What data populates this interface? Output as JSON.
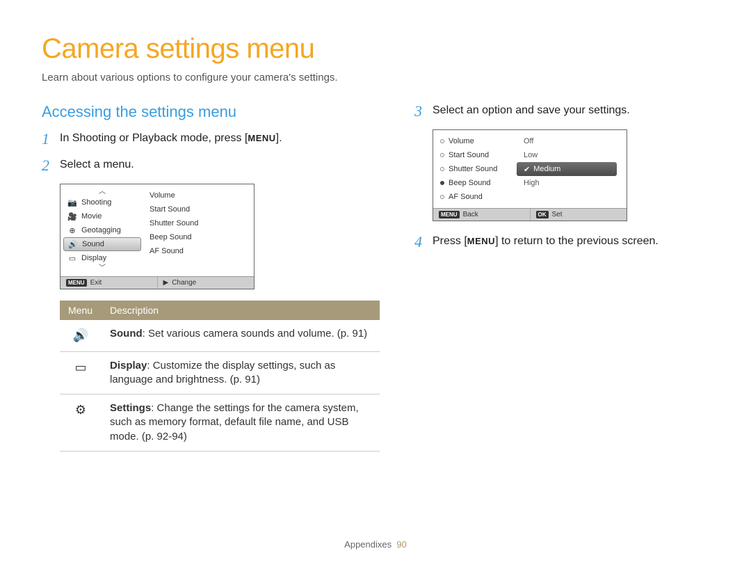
{
  "title": "Camera settings menu",
  "subtitle": "Learn about various options to configure your camera's settings.",
  "section_heading": "Accessing the settings menu",
  "steps": {
    "s1_num": "1",
    "s1_pre": "In Shooting or Playback mode, press [",
    "s1_menu": "MENU",
    "s1_post": "].",
    "s2_num": "2",
    "s2_text": "Select a menu.",
    "s3_num": "3",
    "s3_text": "Select an option and save your settings.",
    "s4_num": "4",
    "s4_pre": "Press [",
    "s4_menu": "MENU",
    "s4_post": "] to return to the previous screen."
  },
  "cam1": {
    "left_items": [
      "Shooting",
      "Movie",
      "Geotagging",
      "Sound",
      "Display"
    ],
    "selected_index": 3,
    "right_items": [
      "Volume",
      "Start Sound",
      "Shutter Sound",
      "Beep Sound",
      "AF Sound"
    ],
    "footer_left": "Exit",
    "footer_right": "Change"
  },
  "desc_table": {
    "h1": "Menu",
    "h2": "Description",
    "rows": [
      {
        "icon": "sound",
        "bold": "Sound",
        "text": ": Set various camera sounds and volume. (p. 91)"
      },
      {
        "icon": "display",
        "bold": "Display",
        "text": ": Customize the display settings, such as language and brightness. (p. 91)"
      },
      {
        "icon": "settings",
        "bold": "Settings",
        "text": ": Change the settings for the camera system, such as memory format, default file name, and USB mode. (p. 92-94)"
      }
    ]
  },
  "cam2": {
    "left_items": [
      "Volume",
      "Start Sound",
      "Shutter Sound",
      "Beep Sound",
      "AF Sound"
    ],
    "selected_left_index": 3,
    "options": [
      "Off",
      "Low",
      "Medium",
      "High"
    ],
    "selected_option_index": 2,
    "footer_left": "Back",
    "footer_right": "Set"
  },
  "footer": {
    "label": "Appendixes",
    "page": "90"
  }
}
